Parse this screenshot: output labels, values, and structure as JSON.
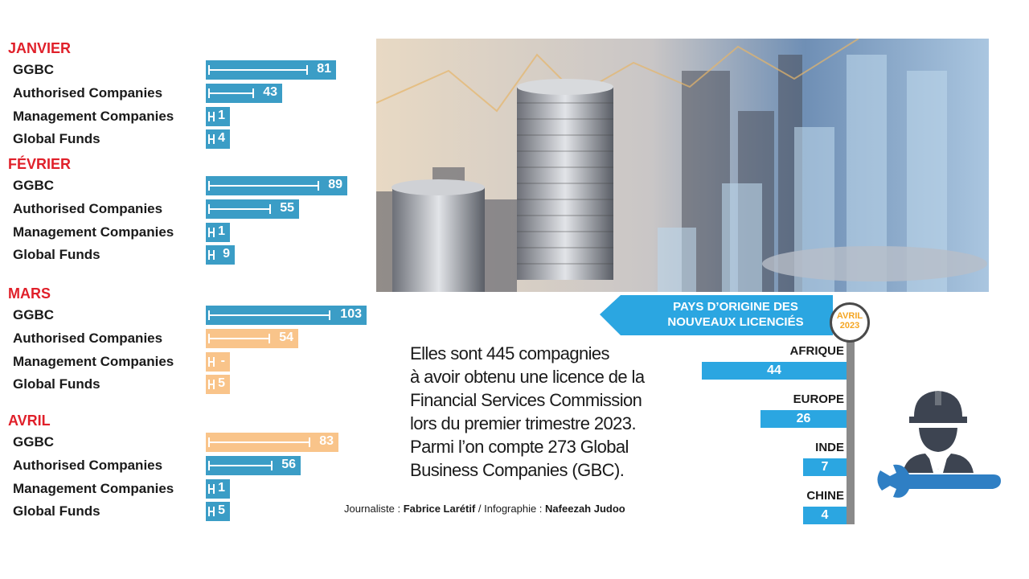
{
  "chart_data": {
    "type": "bar",
    "groups": [
      {
        "month": "JANVIER",
        "items": [
          {
            "label": "GGBC",
            "value": 81,
            "display": "81",
            "color": "#3b9dc6"
          },
          {
            "label": "Authorised Companies",
            "value": 43,
            "display": "43",
            "color": "#3b9dc6"
          },
          {
            "label": "Management Companies",
            "value": 1,
            "display": "1",
            "color": "#3b9dc6"
          },
          {
            "label": "Global Funds",
            "value": 4,
            "display": "4",
            "color": "#3b9dc6"
          }
        ]
      },
      {
        "month": "FÉVRIER",
        "items": [
          {
            "label": "GGBC",
            "value": 89,
            "display": "89",
            "color": "#3b9dc6"
          },
          {
            "label": "Authorised Companies",
            "value": 55,
            "display": "55",
            "color": "#3b9dc6"
          },
          {
            "label": "Management Companies",
            "value": 1,
            "display": "1",
            "color": "#3b9dc6"
          },
          {
            "label": "Global Funds",
            "value": 9,
            "display": "9",
            "color": "#3b9dc6"
          }
        ]
      },
      {
        "month": "MARS",
        "items": [
          {
            "label": "GGBC",
            "value": 103,
            "display": "103",
            "color": "#3b9dc6"
          },
          {
            "label": "Authorised Companies",
            "value": 54,
            "display": "54",
            "color": "#f9c48a"
          },
          {
            "label": "Management Companies",
            "value": 0,
            "display": "-",
            "color": "#f9c48a"
          },
          {
            "label": "Global Funds",
            "value": 5,
            "display": "5",
            "color": "#f9c48a"
          }
        ]
      },
      {
        "month": "AVRIL",
        "items": [
          {
            "label": "GGBC",
            "value": 83,
            "display": "83",
            "color": "#f9c48a"
          },
          {
            "label": "Authorised Companies",
            "value": 56,
            "display": "56",
            "color": "#3b9dc6"
          },
          {
            "label": "Management Companies",
            "value": 1,
            "display": "1",
            "color": "#3b9dc6"
          },
          {
            "label": "Global Funds",
            "value": 5,
            "display": "5",
            "color": "#3b9dc6"
          }
        ]
      }
    ],
    "countries": {
      "title_line1": "PAYS D’ORIGINE DES",
      "title_line2": "NOUVEAUX LICENCIÉS",
      "badge_line1": "AVRIL",
      "badge_line2": "2023",
      "items": [
        {
          "label": "AFRIQUE",
          "value": 44
        },
        {
          "label": "EUROPE",
          "value": 26
        },
        {
          "label": "INDE",
          "value": 7
        },
        {
          "label": "CHINE",
          "value": 4
        }
      ]
    }
  },
  "quote": {
    "lines": [
      "Elles sont 445 compagnies",
      "à avoir obtenu une licence de la",
      "Financial Services Commission",
      "lors du premier trimestre 2023.",
      "Parmi l’on compte 273 Global",
      "Business Companies (GBC)."
    ]
  },
  "credits": {
    "journalist_prefix": "Journaliste : ",
    "journalist": "Fabrice Larétif",
    "separator": " / ",
    "infographic_prefix": "Infographie : ",
    "infographic": "Nafeezah Judoo"
  },
  "colors": {
    "blue": "#3b9dc6",
    "orange": "#f9c48a",
    "month_red": "#e0202a",
    "country_blue": "#2ba6e1"
  }
}
